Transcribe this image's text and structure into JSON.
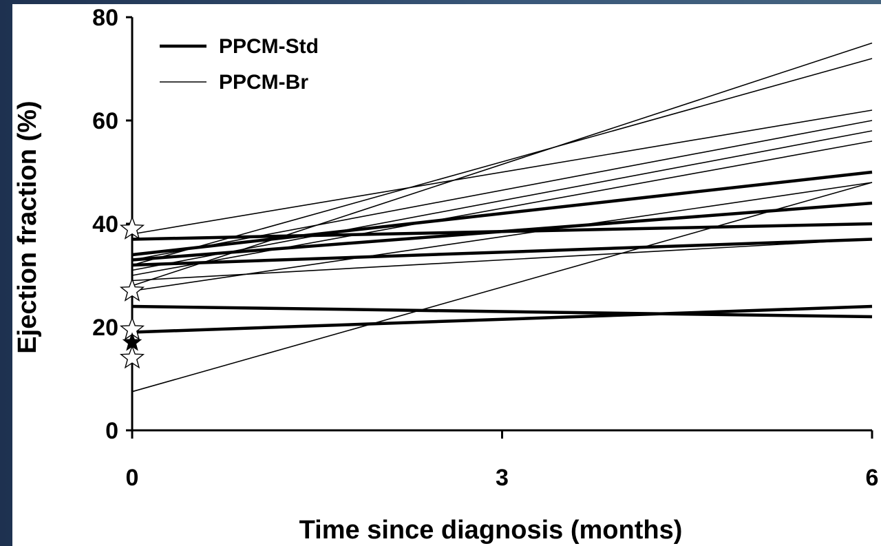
{
  "chart_data": {
    "type": "line",
    "title": "",
    "xlabel": "Time since diagnosis (months)",
    "ylabel": "Ejection fraction (%)",
    "xlim": [
      0,
      6
    ],
    "ylim": [
      0,
      80
    ],
    "x_ticks": [
      0,
      3,
      6
    ],
    "x_tick_labels": [
      "0",
      "3",
      "6"
    ],
    "y_ticks": [
      0,
      20,
      40,
      60,
      80
    ],
    "y_tick_labels": [
      "0",
      "20",
      "40",
      "60",
      "80"
    ],
    "grid": false,
    "legend": {
      "placement": "top-left",
      "entries": [
        {
          "label": "PPCM-Std",
          "style": "thick"
        },
        {
          "label": "PPCM-Br",
          "style": "thin"
        }
      ]
    },
    "series": [
      {
        "group": "PPCM-Std",
        "x": [
          0,
          6
        ],
        "y": [
          37,
          40
        ]
      },
      {
        "group": "PPCM-Std",
        "x": [
          0,
          6
        ],
        "y": [
          34,
          50
        ]
      },
      {
        "group": "PPCM-Std",
        "x": [
          0,
          6
        ],
        "y": [
          33,
          44
        ]
      },
      {
        "group": "PPCM-Std",
        "x": [
          0,
          6
        ],
        "y": [
          32,
          37
        ]
      },
      {
        "group": "PPCM-Std",
        "x": [
          0,
          6
        ],
        "y": [
          24,
          22
        ]
      },
      {
        "group": "PPCM-Std",
        "x": [
          0,
          6
        ],
        "y": [
          19,
          24
        ]
      },
      {
        "group": "PPCM-Br",
        "x": [
          0,
          6
        ],
        "y": [
          38,
          62
        ]
      },
      {
        "group": "PPCM-Br",
        "x": [
          0,
          6
        ],
        "y": [
          33,
          60
        ]
      },
      {
        "group": "PPCM-Br",
        "x": [
          0,
          6
        ],
        "y": [
          32,
          72
        ]
      },
      {
        "group": "PPCM-Br",
        "x": [
          0,
          6
        ],
        "y": [
          31,
          58
        ]
      },
      {
        "group": "PPCM-Br",
        "x": [
          0,
          6
        ],
        "y": [
          30,
          56
        ]
      },
      {
        "group": "PPCM-Br",
        "x": [
          0,
          6
        ],
        "y": [
          29,
          37
        ]
      },
      {
        "group": "PPCM-Br",
        "x": [
          0,
          6
        ],
        "y": [
          28,
          75
        ]
      },
      {
        "group": "PPCM-Br",
        "x": [
          0,
          6
        ],
        "y": [
          27,
          48
        ]
      },
      {
        "group": "PPCM-Br",
        "x": [
          0,
          6
        ],
        "y": [
          7.5,
          48
        ]
      }
    ],
    "baseline_markers": [
      {
        "x": 0,
        "y": 39,
        "fill": "open"
      },
      {
        "x": 0,
        "y": 27,
        "fill": "open"
      },
      {
        "x": 0,
        "y": 19.5,
        "fill": "open"
      },
      {
        "x": 0,
        "y": 17,
        "fill": "filled"
      },
      {
        "x": 0,
        "y": 14,
        "fill": "open"
      }
    ]
  }
}
